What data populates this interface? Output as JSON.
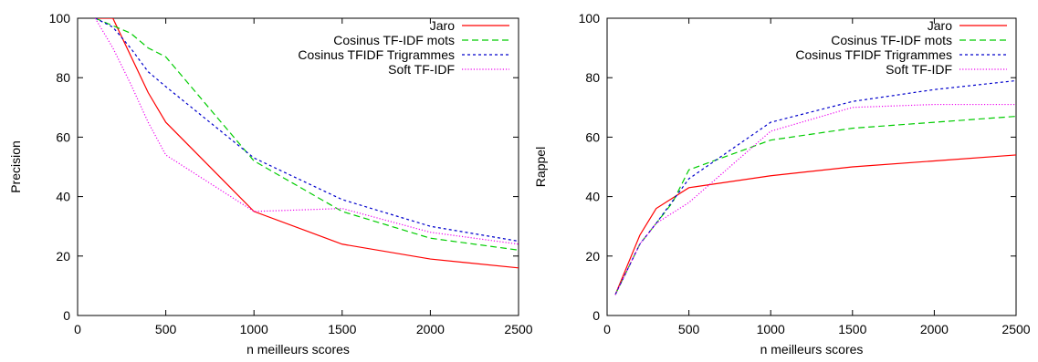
{
  "chart_data": [
    {
      "type": "line",
      "title": "",
      "xlabel": "n meilleurs scores",
      "ylabel": "Precision",
      "xlim": [
        0,
        2500
      ],
      "ylim": [
        0,
        100
      ],
      "xticks": [
        "0",
        "500",
        "1000",
        "1500",
        "2000",
        "2500"
      ],
      "yticks": [
        "0",
        "20",
        "40",
        "60",
        "80",
        "100"
      ],
      "grid": false,
      "legend_position": "top-right",
      "series": [
        {
          "name": "Jaro",
          "color": "#ff0000",
          "dash": "solid",
          "x": [
            100,
            200,
            400,
            500,
            1000,
            1500,
            2000,
            2500
          ],
          "y": [
            100,
            100,
            75,
            65,
            35,
            24,
            19,
            16
          ]
        },
        {
          "name": "Cosinus TF-IDF mots",
          "color": "#00cc00",
          "dash": "dashed",
          "x": [
            100,
            300,
            400,
            500,
            1000,
            1500,
            2000,
            2500
          ],
          "y": [
            100,
            95,
            90,
            87,
            52,
            35,
            26,
            22
          ]
        },
        {
          "name": "Cosinus TFIDF Trigrammes",
          "color": "#0000cc",
          "dash": "short-dashed",
          "x": [
            100,
            200,
            300,
            400,
            500,
            1000,
            1500,
            2000,
            2500
          ],
          "y": [
            100,
            97,
            90,
            82,
            77,
            53,
            39,
            30,
            25
          ]
        },
        {
          "name": "Soft TF-IDF",
          "color": "#ee00ee",
          "dash": "dotted",
          "x": [
            100,
            200,
            300,
            400,
            500,
            1000,
            1500,
            2000,
            2500
          ],
          "y": [
            100,
            90,
            78,
            65,
            54,
            35,
            36,
            28,
            24
          ]
        }
      ]
    },
    {
      "type": "line",
      "title": "",
      "xlabel": "n meilleurs scores",
      "ylabel": "Rappel",
      "xlim": [
        0,
        2500
      ],
      "ylim": [
        0,
        100
      ],
      "xticks": [
        "0",
        "500",
        "1000",
        "1500",
        "2000",
        "2500"
      ],
      "yticks": [
        "0",
        "20",
        "40",
        "60",
        "80",
        "100"
      ],
      "grid": false,
      "legend_position": "top-right",
      "series": [
        {
          "name": "Jaro",
          "color": "#ff0000",
          "dash": "solid",
          "x": [
            50,
            200,
            300,
            500,
            1000,
            1500,
            2000,
            2500
          ],
          "y": [
            7,
            27,
            36,
            43,
            47,
            50,
            52,
            54
          ]
        },
        {
          "name": "Cosinus TF-IDF mots",
          "color": "#00cc00",
          "dash": "dashed",
          "x": [
            50,
            200,
            300,
            400,
            500,
            1000,
            1500,
            2000,
            2500
          ],
          "y": [
            7,
            24,
            31,
            38,
            49,
            59,
            63,
            65,
            67
          ]
        },
        {
          "name": "Cosinus TFIDF Trigrammes",
          "color": "#0000cc",
          "dash": "short-dashed",
          "x": [
            50,
            200,
            300,
            500,
            1000,
            1500,
            2000,
            2500
          ],
          "y": [
            7,
            24,
            31,
            46,
            65,
            72,
            76,
            79
          ]
        },
        {
          "name": "Soft TF-IDF",
          "color": "#ee00ee",
          "dash": "dotted",
          "x": [
            50,
            200,
            300,
            500,
            1000,
            1500,
            2000,
            2500
          ],
          "y": [
            7,
            24,
            31,
            38,
            62,
            70,
            71,
            71
          ]
        }
      ]
    }
  ]
}
